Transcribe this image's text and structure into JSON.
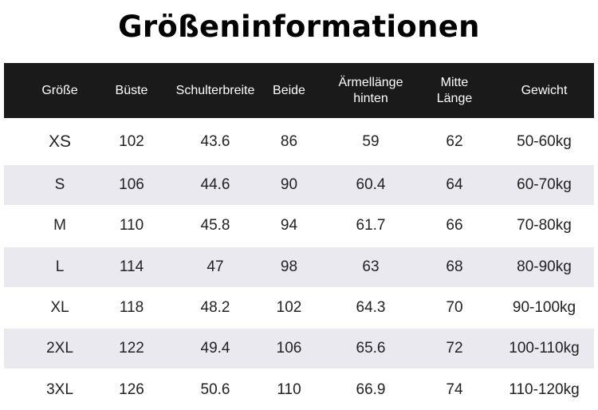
{
  "title": "Größeninformationen",
  "table": {
    "headers": [
      "Größe",
      "Büste",
      "Schulterbreite",
      "Beide",
      "Ärmellänge\nhinten",
      "Mitte\nLänge",
      "Gewicht"
    ],
    "rows": [
      [
        "XS",
        "102",
        "43.6",
        "86",
        "59",
        "62",
        "50-60kg"
      ],
      [
        "S",
        "106",
        "44.6",
        "90",
        "60.4",
        "64",
        "60-70kg"
      ],
      [
        "M",
        "110",
        "45.8",
        "94",
        "61.7",
        "66",
        "70-80kg"
      ],
      [
        "L",
        "114",
        "47",
        "98",
        "63",
        "68",
        "80-90kg"
      ],
      [
        "XL",
        "118",
        "48.2",
        "102",
        "64.3",
        "70",
        "90-100kg"
      ],
      [
        "2XL",
        "122",
        "49.4",
        "106",
        "65.6",
        "72",
        "100-110kg"
      ],
      [
        "3XL",
        "126",
        "50.6",
        "110",
        "66.9",
        "74",
        "110-120kg"
      ]
    ]
  },
  "colors": {
    "header_bg": "#1a1a1a",
    "alt_row_bg": "#e9e9ef"
  }
}
